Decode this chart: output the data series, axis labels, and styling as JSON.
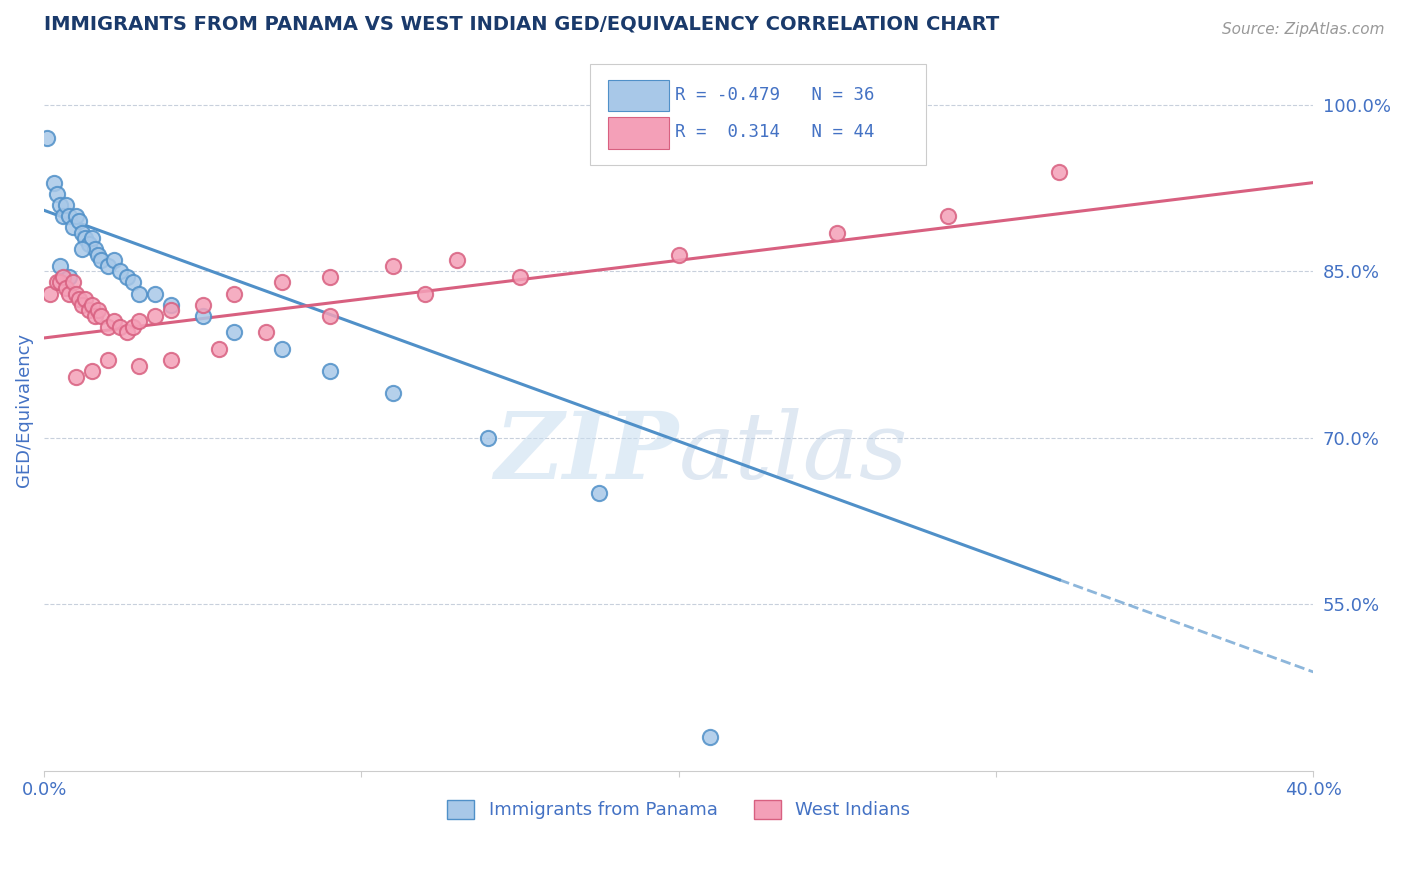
{
  "title": "IMMIGRANTS FROM PANAMA VS WEST INDIAN GED/EQUIVALENCY CORRELATION CHART",
  "source": "Source: ZipAtlas.com",
  "ylabel": "GED/Equivalency",
  "xlim": [
    0.0,
    0.4
  ],
  "ylim": [
    0.4,
    1.05
  ],
  "yticks_right": [
    0.55,
    0.7,
    0.85,
    1.0
  ],
  "ytick_right_labels": [
    "55.0%",
    "70.0%",
    "85.0%",
    "100.0%"
  ],
  "xticks": [
    0.0,
    0.1,
    0.2,
    0.3,
    0.4
  ],
  "xtick_labels": [
    "0.0%",
    "",
    "",
    "",
    "40.0%"
  ],
  "panama_R": -0.479,
  "panama_N": 36,
  "westindian_R": 0.314,
  "westindian_N": 44,
  "panama_color": "#a8c8e8",
  "panama_line_color": "#5090c8",
  "westindian_color": "#f4a0b8",
  "westindian_line_color": "#d86080",
  "panama_trend_x0": 0.0,
  "panama_trend_y0": 0.905,
  "panama_trend_x1": 0.32,
  "panama_trend_y1": 0.572,
  "panama_trend_xdash0": 0.32,
  "panama_trend_ydash0": 0.572,
  "panama_trend_xdash1": 0.4,
  "panama_trend_ydash1": 0.489,
  "westindian_trend_x0": 0.0,
  "westindian_trend_y0": 0.79,
  "westindian_trend_x1": 0.4,
  "westindian_trend_y1": 0.93,
  "panama_scatter_x": [
    0.001,
    0.003,
    0.004,
    0.005,
    0.006,
    0.007,
    0.008,
    0.009,
    0.01,
    0.011,
    0.012,
    0.013,
    0.014,
    0.015,
    0.016,
    0.017,
    0.018,
    0.02,
    0.022,
    0.024,
    0.026,
    0.028,
    0.03,
    0.035,
    0.04,
    0.05,
    0.06,
    0.075,
    0.09,
    0.11,
    0.14,
    0.175,
    0.005,
    0.008,
    0.012,
    0.21
  ],
  "panama_scatter_y": [
    0.97,
    0.93,
    0.92,
    0.91,
    0.9,
    0.91,
    0.9,
    0.89,
    0.9,
    0.895,
    0.885,
    0.88,
    0.875,
    0.88,
    0.87,
    0.865,
    0.86,
    0.855,
    0.86,
    0.85,
    0.845,
    0.84,
    0.83,
    0.83,
    0.82,
    0.81,
    0.795,
    0.78,
    0.76,
    0.74,
    0.7,
    0.65,
    0.855,
    0.845,
    0.87,
    0.43
  ],
  "westindian_scatter_x": [
    0.002,
    0.004,
    0.005,
    0.006,
    0.007,
    0.008,
    0.009,
    0.01,
    0.011,
    0.012,
    0.013,
    0.014,
    0.015,
    0.016,
    0.017,
    0.018,
    0.02,
    0.022,
    0.024,
    0.026,
    0.028,
    0.03,
    0.035,
    0.04,
    0.05,
    0.06,
    0.075,
    0.09,
    0.11,
    0.13,
    0.01,
    0.015,
    0.02,
    0.03,
    0.04,
    0.055,
    0.07,
    0.09,
    0.12,
    0.15,
    0.2,
    0.25,
    0.285,
    0.32
  ],
  "westindian_scatter_y": [
    0.83,
    0.84,
    0.84,
    0.845,
    0.835,
    0.83,
    0.84,
    0.83,
    0.825,
    0.82,
    0.825,
    0.815,
    0.82,
    0.81,
    0.815,
    0.81,
    0.8,
    0.805,
    0.8,
    0.795,
    0.8,
    0.805,
    0.81,
    0.815,
    0.82,
    0.83,
    0.84,
    0.845,
    0.855,
    0.86,
    0.755,
    0.76,
    0.77,
    0.765,
    0.77,
    0.78,
    0.795,
    0.81,
    0.83,
    0.845,
    0.865,
    0.885,
    0.9,
    0.94
  ],
  "watermark_zip": "ZIP",
  "watermark_atlas": "atlas",
  "legend_panama_label": "Immigrants from Panama",
  "legend_westindian_label": "West Indians",
  "title_color": "#1a3a6b",
  "axis_color": "#4472c4",
  "bg_color": "#ffffff",
  "grid_color": "#c8d0dc"
}
